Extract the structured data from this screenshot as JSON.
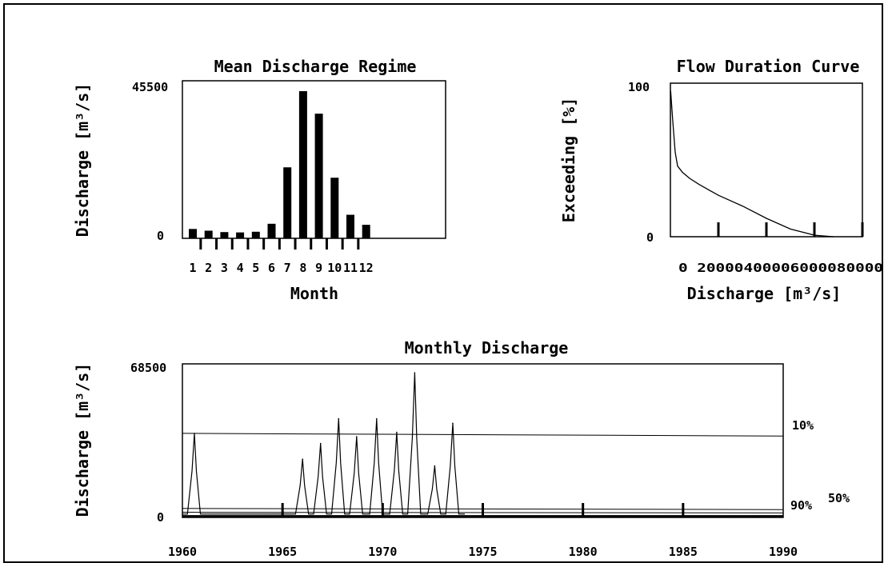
{
  "chart_data": [
    {
      "type": "bar",
      "title": "Mean Discharge Regime",
      "xlabel": "Month",
      "ylabel": "Discharge [m³/s]",
      "ylim": [
        0,
        45500
      ],
      "ytick_labels": [
        "45500",
        "0"
      ],
      "categories": [
        "1",
        "2",
        "3",
        "4",
        "5",
        "6",
        "7",
        "8",
        "9",
        "10",
        "11",
        "12"
      ],
      "values": [
        2700,
        2200,
        1800,
        1700,
        1900,
        4200,
        20500,
        42500,
        36000,
        17500,
        6800,
        3900
      ],
      "grid": false
    },
    {
      "type": "line",
      "title": "Flow Duration Curve",
      "xlabel": "Discharge [m³/s]",
      "ylabel": "Exceeding [%]",
      "xlim": [
        0,
        80000
      ],
      "ylim": [
        0,
        100
      ],
      "xtick_labels": [
        "0",
        "20000",
        "40000",
        "60000",
        "80000"
      ],
      "ytick_labels": [
        "100",
        "0"
      ],
      "x": [
        100,
        1000,
        2000,
        3000,
        5000,
        8000,
        12000,
        20000,
        30000,
        40000,
        50000,
        60000,
        68000
      ],
      "y": [
        95,
        75,
        55,
        46,
        42,
        38,
        34,
        27,
        20,
        12,
        5,
        1,
        0
      ],
      "grid": false
    },
    {
      "type": "line",
      "title": "Monthly Discharge",
      "xlabel": "",
      "ylabel": "Discharge [m³/s]",
      "xlim": [
        1960,
        1990
      ],
      "ylim": [
        0,
        68500
      ],
      "xtick_labels": [
        "1960",
        "1965",
        "1970",
        "1975",
        "1980",
        "1985",
        "1990"
      ],
      "ytick_labels": [
        "68500",
        "0"
      ],
      "peaks": [
        {
          "x": 1960.6,
          "y": 37500
        },
        {
          "x": 1966.0,
          "y": 26000
        },
        {
          "x": 1966.9,
          "y": 33000
        },
        {
          "x": 1967.8,
          "y": 44000
        },
        {
          "x": 1968.7,
          "y": 36000
        },
        {
          "x": 1969.7,
          "y": 44000
        },
        {
          "x": 1970.7,
          "y": 38000
        },
        {
          "x": 1971.6,
          "y": 64500
        },
        {
          "x": 1972.6,
          "y": 23000
        },
        {
          "x": 1973.5,
          "y": 42000
        }
      ],
      "reference_lines": [
        {
          "label": "10%",
          "y_start": 37500,
          "y_end": 36300
        },
        {
          "label": "50%",
          "y_start": 4000,
          "y_end": 3500
        },
        {
          "label": "90%",
          "y_start": 2300,
          "y_end": 2000
        }
      ],
      "grid": false
    }
  ]
}
